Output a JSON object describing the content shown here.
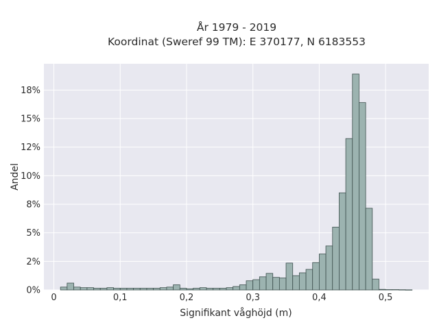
{
  "chart_data": {
    "type": "bar",
    "title_line1": "År 1979 - 2019",
    "title_line2": "Koordinat (Sweref 99 TM): E 370177, N 6183553",
    "xlabel": "Signifikant våghöjd (m)",
    "ylabel": "Andel",
    "xlim": [
      -0.015,
      0.565
    ],
    "ylim": [
      0,
      0.198
    ],
    "x_ticks": [
      0,
      0.1,
      0.2,
      0.3,
      0.4,
      0.5
    ],
    "x_tick_labels": [
      "0",
      "0,1",
      "0,2",
      "0,3",
      "0,4",
      "0,5"
    ],
    "y_ticks": [
      0,
      0.025,
      0.05,
      0.075,
      0.1,
      0.125,
      0.15,
      0.175
    ],
    "y_tick_labels": [
      "0%",
      "2%",
      "5%",
      "8%",
      "10%",
      "12%",
      "15%",
      "18%"
    ],
    "bin_width": 0.01,
    "bin_starts": [
      0.01,
      0.02,
      0.03,
      0.04,
      0.05,
      0.06,
      0.07,
      0.08,
      0.09,
      0.1,
      0.11,
      0.12,
      0.13,
      0.14,
      0.15,
      0.16,
      0.17,
      0.18,
      0.19,
      0.2,
      0.21,
      0.22,
      0.23,
      0.24,
      0.25,
      0.26,
      0.27,
      0.28,
      0.29,
      0.3,
      0.31,
      0.32,
      0.33,
      0.34,
      0.35,
      0.36,
      0.37,
      0.38,
      0.39,
      0.4,
      0.41,
      0.42,
      0.43,
      0.44,
      0.45,
      0.46,
      0.47,
      0.48,
      0.49,
      0.5,
      0.51,
      0.52,
      0.53
    ],
    "values": [
      0.0025,
      0.006,
      0.0025,
      0.002,
      0.002,
      0.0015,
      0.0015,
      0.002,
      0.0015,
      0.0015,
      0.0015,
      0.0015,
      0.0015,
      0.0015,
      0.0015,
      0.002,
      0.0025,
      0.0045,
      0.0015,
      0.001,
      0.0015,
      0.002,
      0.0015,
      0.0015,
      0.0015,
      0.002,
      0.003,
      0.0045,
      0.008,
      0.009,
      0.0115,
      0.0145,
      0.011,
      0.0105,
      0.0235,
      0.0125,
      0.015,
      0.018,
      0.024,
      0.0315,
      0.0385,
      0.055,
      0.085,
      0.1325,
      0.189,
      0.164,
      0.0715,
      0.0095,
      0.0005,
      0.0003,
      0.0003,
      0.0002,
      0.0001
    ],
    "grid": true,
    "colors": {
      "background": "#e8e8f0",
      "grid": "#ffffff",
      "bar_fill": "#9cb3b0",
      "bar_edge": "#3c4f4d",
      "text": "#2a2a2a"
    }
  }
}
